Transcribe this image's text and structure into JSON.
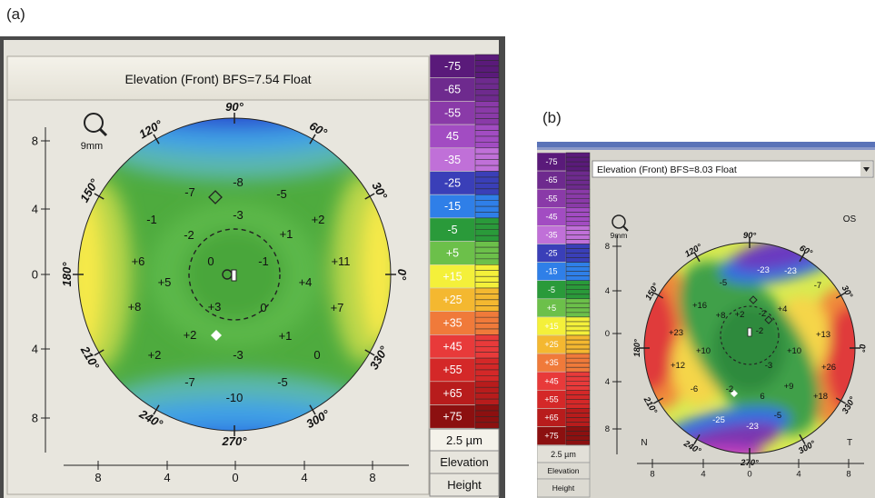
{
  "figure_labels": {
    "a": "(a)",
    "b": "(b)"
  },
  "panel_a": {
    "title": "Elevation (Front)  BFS=7.54 Float",
    "lens_label": "9mm",
    "angles": [
      "90°",
      "60°",
      "30°",
      "0°",
      "330°",
      "300°",
      "270°",
      "240°",
      "210°",
      "180°",
      "150°",
      "120°"
    ],
    "y_ticks": [
      "8",
      "4",
      "0",
      "4",
      "8"
    ],
    "x_ticks": [
      "8",
      "4",
      "0",
      "4",
      "8"
    ],
    "map_values": [
      "-8",
      "-7",
      "-5",
      "-3",
      "-1",
      "-2",
      "+1",
      "+2",
      "+6",
      "0",
      "-1",
      "+11",
      "+5",
      "+4",
      "+8",
      "+3",
      "0",
      "+7",
      "+2",
      "+1",
      "+2",
      "-3",
      "0",
      "-7",
      "-5",
      "-10"
    ],
    "scale": [
      "-75",
      "-65",
      "-55",
      "45",
      "-35",
      "-25",
      "-15",
      "-5",
      "+5",
      "+15",
      "+25",
      "+35",
      "+45",
      "+55",
      "+65",
      "+75"
    ],
    "step": "2.5 µm",
    "mode1": "Elevation",
    "mode2": "Height"
  },
  "panel_b": {
    "title": "Elevation (Front)  BFS=8.03 Float",
    "lens_label": "9mm",
    "eye": "OS",
    "nasal": "N",
    "temporal": "T",
    "angles": [
      "90°",
      "60°",
      "30°",
      "0°",
      "330°",
      "300°",
      "270°",
      "240°",
      "210°",
      "180°",
      "150°",
      "120°"
    ],
    "y_ticks": [
      "8",
      "4",
      "0",
      "4",
      "8"
    ],
    "x_ticks": [
      "8",
      "4",
      "0",
      "4",
      "8"
    ],
    "map_values": [
      "-23",
      "-23",
      "-5",
      "-7",
      "+16",
      "+8",
      "+2",
      "-2",
      "+4",
      "+23",
      "-2",
      "+13",
      "+10",
      "+10",
      "+26",
      "+12",
      "-3",
      "+18",
      "+9",
      "-6",
      "-2",
      "6",
      "-25",
      "-5",
      "-23"
    ],
    "scale": [
      "-75",
      "-65",
      "-55",
      "-45",
      "-35",
      "-25",
      "-15",
      "-5",
      "+5",
      "+15",
      "+25",
      "+35",
      "+45",
      "+55",
      "+65",
      "+75"
    ],
    "step": "2.5 µm",
    "mode1": "Elevation",
    "mode2": "Height"
  }
}
